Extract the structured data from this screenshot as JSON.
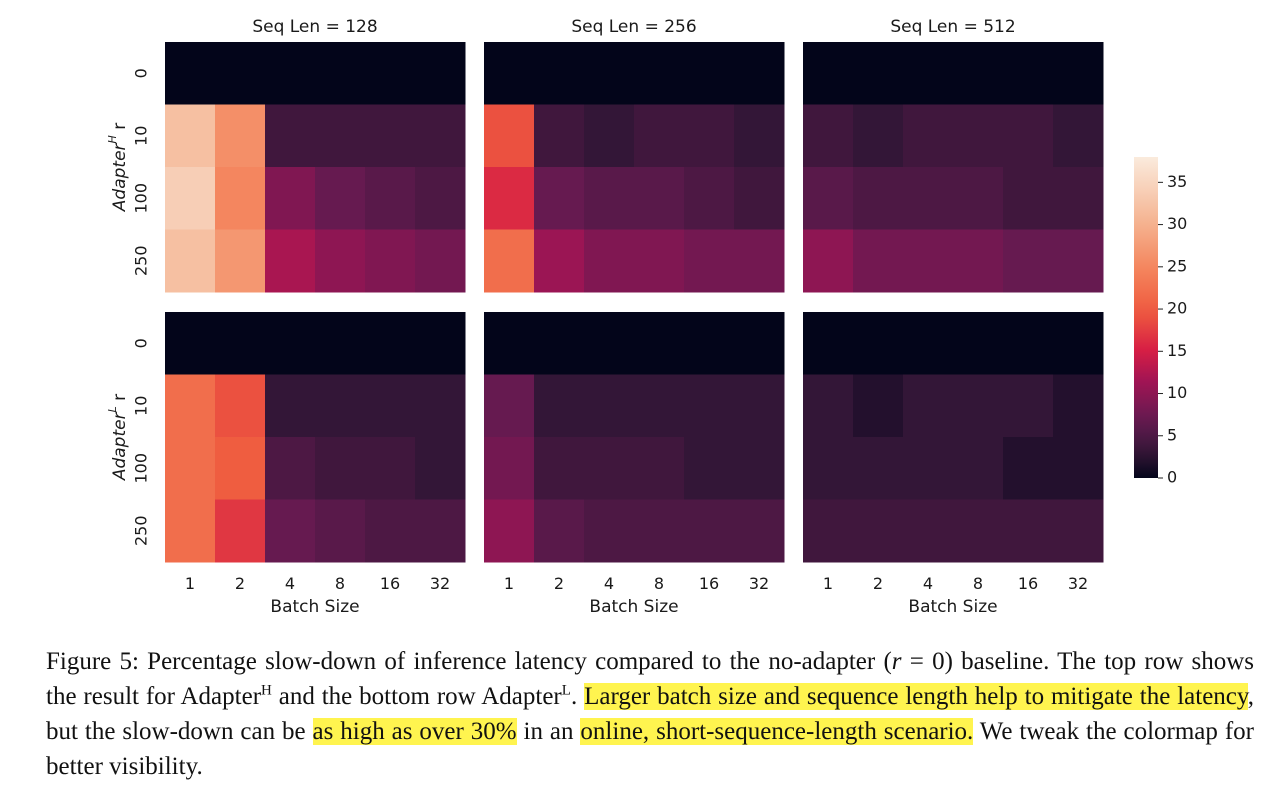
{
  "chart_data": {
    "type": "heatmap",
    "title": "",
    "col_titles": [
      "Seq Len = 128",
      "Seq Len = 256",
      "Seq Len = 512"
    ],
    "row_labels_html": [
      "Adapter<sup>H</sup> r",
      "Adapter<sup>L</sup> r"
    ],
    "xlabel": "Batch Size",
    "x": [
      "1",
      "2",
      "4",
      "8",
      "16",
      "32"
    ],
    "y": [
      "0",
      "10",
      "100",
      "250"
    ],
    "colorbar": {
      "ticks": [
        0,
        5,
        10,
        15,
        20,
        25,
        30,
        35
      ],
      "range": [
        0,
        38
      ],
      "colormap": "rocket"
    },
    "panels": [
      {
        "row": "AdapterH",
        "seq_len": 128,
        "values": [
          [
            0,
            0,
            0,
            0,
            0,
            0
          ],
          [
            32,
            26,
            4,
            4,
            4,
            4
          ],
          [
            34,
            25,
            9,
            7,
            6,
            5
          ],
          [
            32,
            27,
            12,
            10,
            9,
            8
          ]
        ]
      },
      {
        "row": "AdapterH",
        "seq_len": 256,
        "values": [
          [
            0,
            0,
            0,
            0,
            0,
            0
          ],
          [
            19,
            4,
            3,
            4,
            4,
            3
          ],
          [
            16,
            7,
            6,
            6,
            5,
            4
          ],
          [
            22,
            11,
            9,
            9,
            8,
            8
          ]
        ]
      },
      {
        "row": "AdapterH",
        "seq_len": 512,
        "values": [
          [
            0,
            0,
            0,
            0,
            0,
            0
          ],
          [
            4,
            3,
            4,
            4,
            4,
            3
          ],
          [
            6,
            5,
            5,
            5,
            4,
            4
          ],
          [
            10,
            8,
            8,
            8,
            7,
            7
          ]
        ]
      },
      {
        "row": "AdapterL",
        "seq_len": 128,
        "values": [
          [
            0,
            0,
            0,
            0,
            0,
            0
          ],
          [
            22,
            19,
            3,
            3,
            3,
            3
          ],
          [
            22,
            20,
            5,
            4,
            4,
            3
          ],
          [
            22,
            17,
            7,
            6,
            5,
            5
          ]
        ]
      },
      {
        "row": "AdapterL",
        "seq_len": 256,
        "values": [
          [
            0,
            0,
            0,
            0,
            0,
            0
          ],
          [
            7,
            3,
            3,
            3,
            3,
            3
          ],
          [
            8,
            4,
            4,
            4,
            3,
            3
          ],
          [
            10,
            6,
            5,
            5,
            5,
            5
          ]
        ]
      },
      {
        "row": "AdapterL",
        "seq_len": 512,
        "values": [
          [
            0,
            0,
            0,
            0,
            0,
            0
          ],
          [
            3,
            2,
            3,
            3,
            3,
            2
          ],
          [
            3,
            3,
            3,
            3,
            2,
            2
          ],
          [
            4,
            4,
            4,
            4,
            4,
            4
          ]
        ]
      }
    ]
  },
  "caption": {
    "p1": "Figure 5: Percentage slow-down of inference latency compared to the no-adapter (",
    "r": "r",
    "eq": " = 0) baseline. The top row shows the result for Adapter",
    "sup_h": "H",
    "mid": " and the bottom row Adapter",
    "sup_l": "L",
    "dot": ". ",
    "hl1": "Larger batch size and sequence length help to mitigate the latency",
    "p2": ", but the slow-down can be ",
    "hl2": "as high as over 30%",
    "p3": " in an ",
    "hl3": "online, short-sequence-length scenario.",
    "p4": " We tweak the colormap for better visibility."
  }
}
